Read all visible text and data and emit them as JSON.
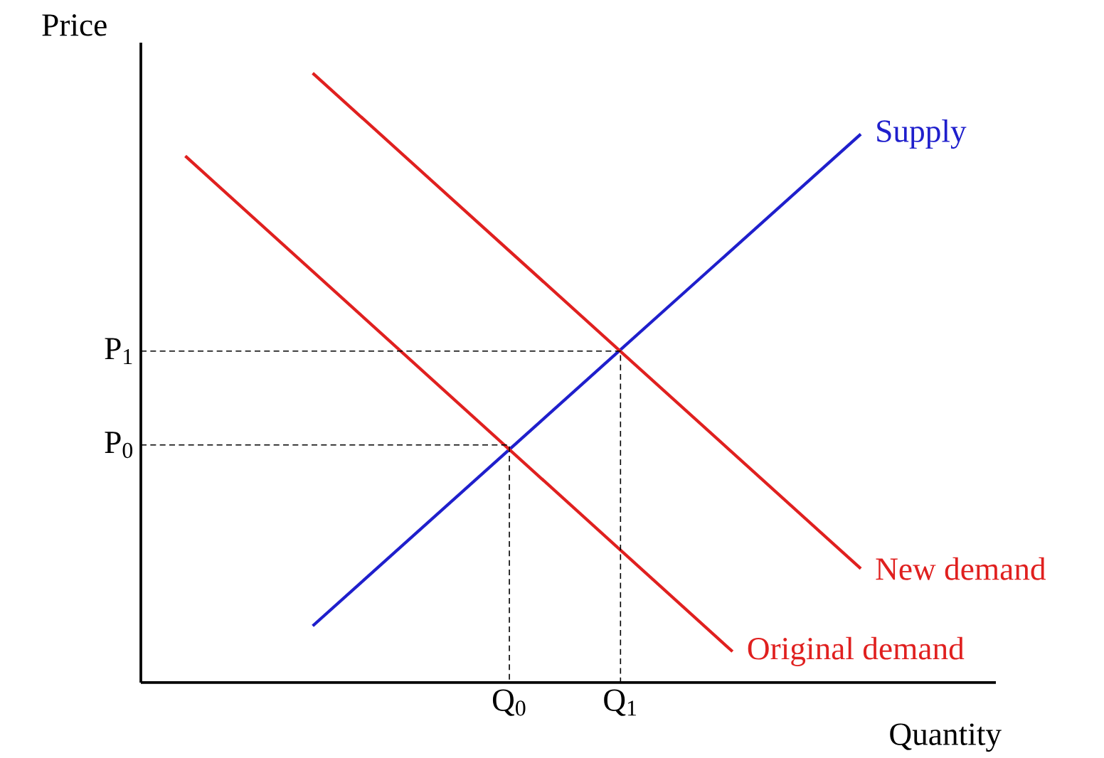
{
  "chart_data": {
    "type": "line",
    "xlabel": "Quantity",
    "ylabel": "Price",
    "xlim": [
      0,
      1
    ],
    "ylim": [
      0,
      1.05
    ],
    "xticks": [
      {
        "value": 0.431,
        "label": "Q$_{0}$"
      },
      {
        "value": 0.561,
        "label": "Q$_{1}$"
      }
    ],
    "yticks": [
      {
        "value": 0.39,
        "label": "P$_{0}$"
      },
      {
        "value": 0.544,
        "label": "P$_{1}$"
      }
    ],
    "marker": "none",
    "series": [
      {
        "name": "Supply",
        "color": "#1f1fcc",
        "x": [
          0.201,
          0.842
        ],
        "values": [
          0.093,
          0.9
        ]
      },
      {
        "name": "Original demand",
        "color": "#e0201f",
        "x": [
          0.052,
          0.692
        ],
        "values": [
          0.864,
          0.051
        ]
      },
      {
        "name": "New demand",
        "color": "#e0201f",
        "x": [
          0.201,
          0.842
        ],
        "values": [
          1.0,
          0.187
        ]
      },
      {
        "color": "#000000",
        "line_style": "dashed",
        "x": [
          0,
          0.431,
          0.431
        ],
        "values": [
          0.39,
          0.39,
          0
        ]
      },
      {
        "color": "#000000",
        "line_style": "dashed",
        "x": [
          0,
          0.561,
          0.561
        ],
        "values": [
          0.544,
          0.544,
          0
        ]
      }
    ]
  }
}
